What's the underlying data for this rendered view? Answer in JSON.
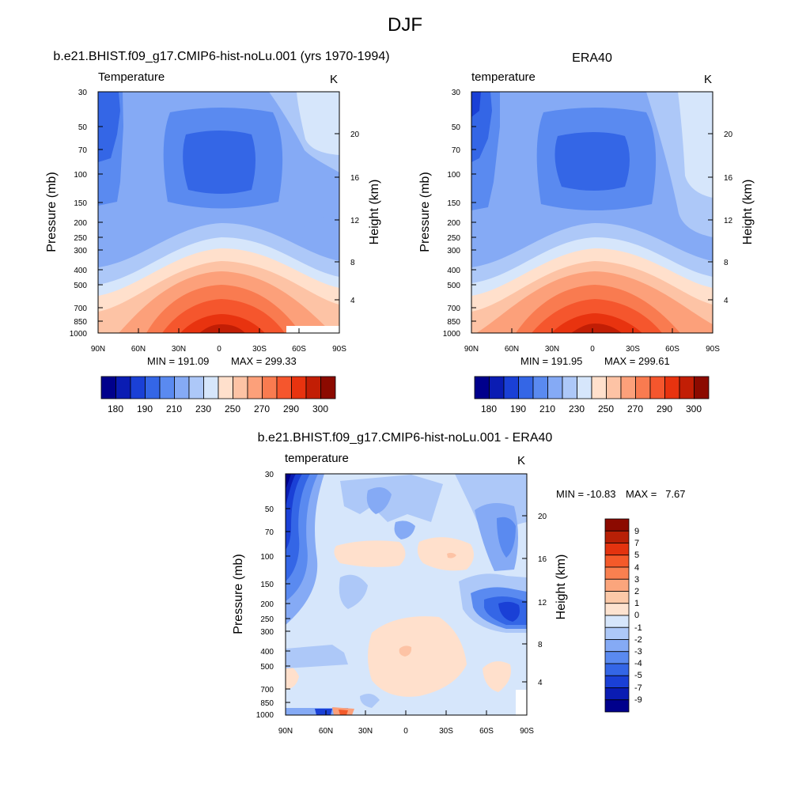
{
  "figure": {
    "title": "DJF"
  },
  "colors": {
    "abs_scale": [
      "#00008c",
      "#0a1cb3",
      "#1a40d6",
      "#3466e6",
      "#5a8af0",
      "#85aaf5",
      "#adc8f8",
      "#d6e6fb",
      "#ffe0cc",
      "#fdc3a5",
      "#fca07a",
      "#f97b50",
      "#f5562d",
      "#e8330f",
      "#c21e05",
      "#8c0a00"
    ],
    "diff_scale": [
      "#00008c",
      "#0a1cb3",
      "#1a40d6",
      "#3466e6",
      "#5a8af0",
      "#85aaf5",
      "#adc8f8",
      "#d6e6fb",
      "#fde3d0",
      "#fcc9a8",
      "#fba57c",
      "#f98050",
      "#f45a2a",
      "#e3330f",
      "#b82006",
      "#8c0a00"
    ]
  },
  "chart_data": [
    {
      "type": "contour",
      "title": "b.e21.BHIST.f09_g17.CMIP6-hist-noLu.001 (yrs 1970-1994)",
      "left_label": "Temperature",
      "right_label": "K",
      "xlabel": "",
      "ylabel": "Pressure (mb)",
      "y2label": "Height (km)",
      "x_ticks": [
        "90N",
        "60N",
        "30N",
        "0",
        "30S",
        "60S",
        "90S"
      ],
      "y_ticks": [
        "30",
        "50",
        "70",
        "100",
        "150",
        "200",
        "250",
        "300",
        "400",
        "500",
        "700",
        "850",
        "1000"
      ],
      "y2_ticks": [
        "20",
        "16",
        "12",
        "8",
        "4"
      ],
      "min_label": "MIN = 191.09",
      "max_label": "MAX = 299.33",
      "min": 191.09,
      "max": 299.33,
      "colorbar_labels": [
        "180",
        "190",
        "210",
        "230",
        "250",
        "270",
        "290",
        "300"
      ]
    },
    {
      "type": "contour",
      "title": "ERA40",
      "left_label": "temperature",
      "right_label": "K",
      "xlabel": "",
      "ylabel": "Pressure (mb)",
      "y2label": "Height (km)",
      "x_ticks": [
        "90N",
        "60N",
        "30N",
        "0",
        "30S",
        "60S",
        "90S"
      ],
      "y_ticks": [
        "30",
        "50",
        "70",
        "100",
        "150",
        "200",
        "250",
        "300",
        "400",
        "500",
        "700",
        "850",
        "1000"
      ],
      "y2_ticks": [
        "20",
        "16",
        "12",
        "8",
        "4"
      ],
      "min_label": "MIN = 191.95",
      "max_label": "MAX = 299.61",
      "min": 191.95,
      "max": 299.61,
      "colorbar_labels": [
        "180",
        "190",
        "210",
        "230",
        "250",
        "270",
        "290",
        "300"
      ]
    },
    {
      "type": "contour",
      "title": "b.e21.BHIST.f09_g17.CMIP6-hist-noLu.001 - ERA40",
      "left_label": "temperature",
      "right_label": "K",
      "xlabel": "",
      "ylabel": "Pressure (mb)",
      "y2label": "Height (km)",
      "x_ticks": [
        "90N",
        "60N",
        "30N",
        "0",
        "30S",
        "60S",
        "90S"
      ],
      "y_ticks": [
        "30",
        "50",
        "70",
        "100",
        "150",
        "200",
        "250",
        "300",
        "400",
        "500",
        "700",
        "850",
        "1000"
      ],
      "y2_ticks": [
        "20",
        "16",
        "12",
        "8",
        "4"
      ],
      "min_label": "MIN = -10.83",
      "max_label": "MAX =   7.67",
      "min": -10.83,
      "max": 7.67,
      "colorbar_labels": [
        "9",
        "7",
        "5",
        "4",
        "3",
        "2",
        "1",
        "0",
        "-1",
        "-2",
        "-3",
        "-4",
        "-5",
        "-7",
        "-9"
      ]
    }
  ]
}
